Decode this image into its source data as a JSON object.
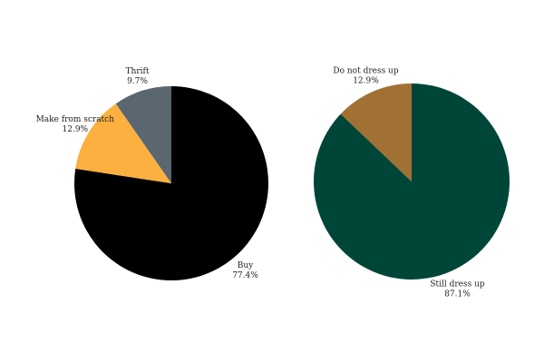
{
  "chart_data": [
    {
      "type": "pie",
      "title": "",
      "slices": [
        {
          "label": "Buy",
          "value": 77.4,
          "value_text": "77.4%",
          "color": "#000000"
        },
        {
          "label": "Make from scratch",
          "value": 12.9,
          "value_text": "12.9%",
          "color": "#fbb040"
        },
        {
          "label": "Thrift",
          "value": 9.7,
          "value_text": "9.7%",
          "color": "#5a6670"
        }
      ],
      "start_angle": "12 o'clock",
      "direction": "clockwise"
    },
    {
      "type": "pie",
      "title": "",
      "slices": [
        {
          "label": "Still dress up",
          "value": 87.1,
          "value_text": "87.1%",
          "color": "#004638"
        },
        {
          "label": "Do not dress up",
          "value": 12.9,
          "value_text": "12.9%",
          "color": "#a17033"
        }
      ],
      "start_angle": "12 o'clock",
      "direction": "clockwise"
    }
  ]
}
